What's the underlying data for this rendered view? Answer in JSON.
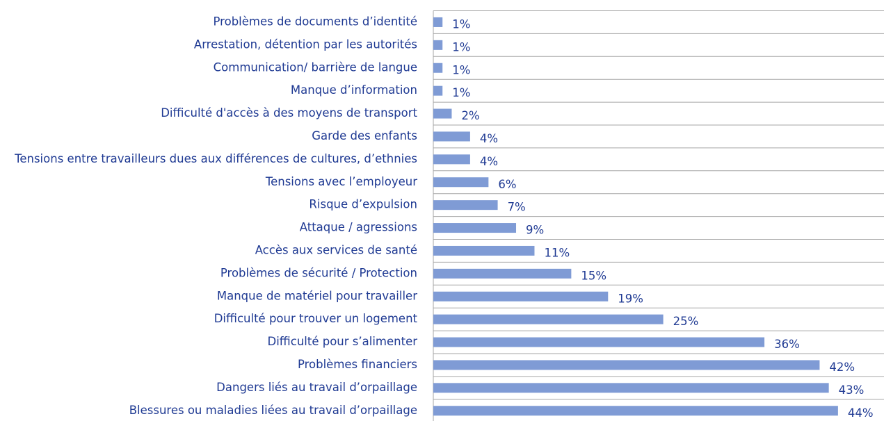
{
  "chart_data": {
    "type": "bar",
    "orientation": "horizontal",
    "categories": [
      "Problèmes de documents d’identité",
      "Arrestation, détention par les autorités",
      "Communication/ barrière de langue",
      "Manque d’information",
      "Difficulté d'accès à des moyens de transport",
      "Garde des enfants",
      "Tensions entre travailleurs dues aux différences de cultures, d’ethnies",
      "Tensions avec l’employeur",
      "Risque d’expulsion",
      "Attaque / agressions",
      "Accès aux services de santé",
      "Problèmes de sécurité / Protection",
      "Manque de matériel pour travailler",
      "Difficulté pour trouver un logement",
      "Difficulté pour s’alimenter",
      "Problèmes financiers",
      "Dangers liés au travail d’orpaillage",
      "Blessures ou maladies liées au travail d’orpaillage"
    ],
    "values": [
      1,
      1,
      1,
      1,
      2,
      4,
      4,
      6,
      7,
      9,
      11,
      15,
      19,
      25,
      36,
      42,
      43,
      44
    ],
    "value_labels": [
      "1%",
      "1%",
      "1%",
      "1%",
      "2%",
      "4%",
      "4%",
      "6%",
      "7%",
      "9%",
      "11%",
      "15%",
      "19%",
      "25%",
      "36%",
      "42%",
      "43%",
      "44%"
    ],
    "color": "#7f9bd5",
    "xlim": [
      0,
      49
    ]
  }
}
